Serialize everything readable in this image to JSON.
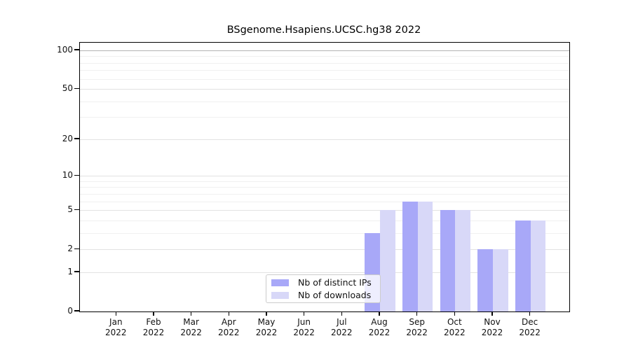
{
  "chart_data": {
    "type": "bar",
    "title": "BSgenome.Hsapiens.UCSC.hg38 2022",
    "categories": [
      "Jan 2022",
      "Feb 2022",
      "Mar 2022",
      "Apr 2022",
      "May 2022",
      "Jun 2022",
      "Jul 2022",
      "Aug 2022",
      "Sep 2022",
      "Oct 2022",
      "Nov 2022",
      "Dec 2022"
    ],
    "series": [
      {
        "name": "Nb of distinct IPs",
        "color": "#a8a8f8",
        "values": [
          0,
          0,
          0,
          0,
          0,
          0,
          0,
          3,
          6,
          5,
          2,
          4
        ]
      },
      {
        "name": "Nb of downloads",
        "color": "#d8d8f8",
        "values": [
          0,
          0,
          0,
          0,
          0,
          0,
          0,
          5,
          6,
          5,
          2,
          4
        ]
      }
    ],
    "yscale": "log1p",
    "ylim": [
      0,
      100
    ],
    "yticks": [
      0,
      1,
      2,
      5,
      10,
      20,
      50,
      100
    ],
    "minor_yticks": [
      3,
      4,
      6,
      7,
      8,
      9,
      30,
      40,
      60,
      70,
      80,
      90
    ],
    "grid": "horizontal",
    "grid_color": "#e2e2e2",
    "minor_grid_color": "#f0f0f0",
    "top_gridline_color": "#b3b3b3",
    "legend_position": "inside-bottom-center"
  }
}
